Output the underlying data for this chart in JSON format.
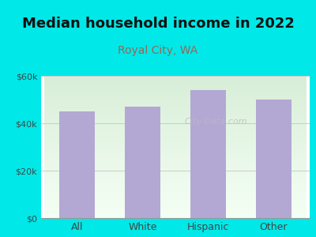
{
  "title": "Median household income in 2022",
  "subtitle": "Royal City, WA",
  "categories": [
    "All",
    "White",
    "Hispanic",
    "Other"
  ],
  "values": [
    45000,
    47000,
    54000,
    50000
  ],
  "bar_color": "#b3a8d4",
  "title_fontsize": 13,
  "subtitle_fontsize": 10,
  "subtitle_color": "#996655",
  "title_color": "#111111",
  "tick_color": "#444444",
  "background_outer": "#00e8e8",
  "background_inner": "#e8f5e2",
  "ylim": [
    0,
    60000
  ],
  "yticks": [
    0,
    20000,
    40000,
    60000
  ],
  "ytick_labels": [
    "$0",
    "$20k",
    "$40k",
    "$60k"
  ],
  "watermark": "City-Data.com"
}
